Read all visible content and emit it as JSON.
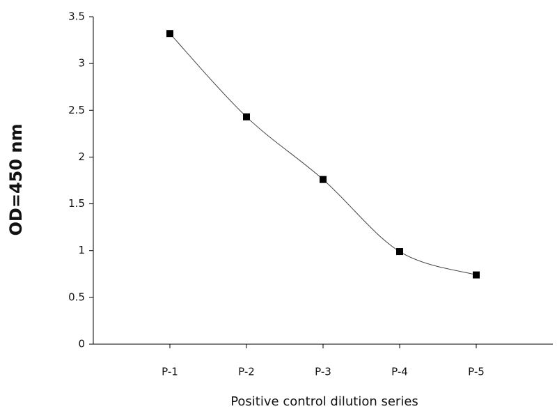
{
  "chart_data": {
    "type": "line",
    "categories": [
      "P-1",
      "P-2",
      "P-3",
      "P-4",
      "P-5"
    ],
    "series": [
      {
        "color": "#000000",
        "values": [
          3.32,
          2.43,
          1.76,
          0.99,
          0.74
        ]
      }
    ],
    "ylim": [
      0,
      3.5
    ],
    "yticks": [
      0,
      0.5,
      1,
      1.5,
      2,
      2.5,
      3,
      3.5
    ],
    "xlabel": "Positive control dilution series",
    "ylabel": "OD=450 nm",
    "grid": false,
    "smooth": true,
    "marker": "square"
  }
}
